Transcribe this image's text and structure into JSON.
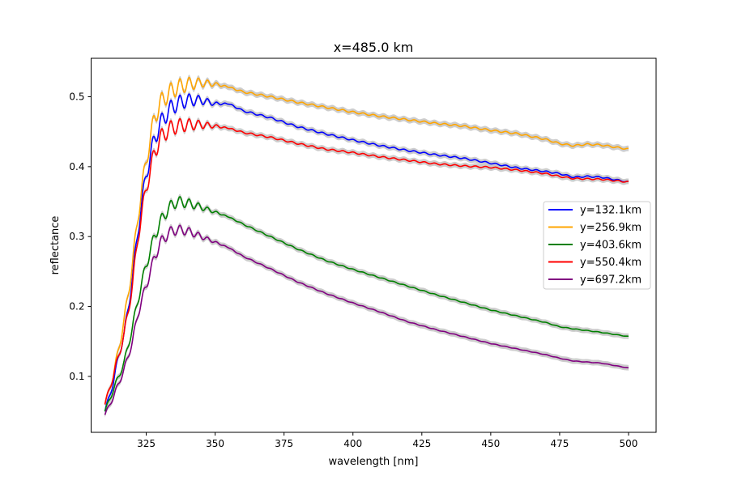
{
  "chart_data": {
    "type": "line",
    "title": "x=485.0 km",
    "xlabel": "wavelength [nm]",
    "ylabel": "reflectance",
    "xlim": [
      305,
      510
    ],
    "ylim": [
      0.02,
      0.555
    ],
    "x_ticks": [
      325,
      350,
      375,
      400,
      425,
      450,
      475,
      500
    ],
    "x_tick_labels": [
      "325",
      "350",
      "375",
      "400",
      "425",
      "450",
      "475",
      "500"
    ],
    "y_ticks": [
      0.1,
      0.2,
      0.3,
      0.4,
      0.5
    ],
    "y_tick_labels": [
      "0.1",
      "0.2",
      "0.3",
      "0.4",
      "0.5"
    ],
    "grid": false,
    "legend_position": "center-right",
    "uncertainty_band_color": "#c8c8c8",
    "series": [
      {
        "name": "y=132.1km",
        "color": "#0000ff",
        "points": [
          [
            310,
            0.05
          ],
          [
            313,
            0.09
          ],
          [
            315,
            0.13
          ],
          [
            317,
            0.16
          ],
          [
            320,
            0.24
          ],
          [
            322,
            0.31
          ],
          [
            325,
            0.39
          ],
          [
            328,
            0.44
          ],
          [
            330,
            0.46
          ],
          [
            333,
            0.48
          ],
          [
            336,
            0.49
          ],
          [
            340,
            0.495
          ],
          [
            345,
            0.495
          ],
          [
            350,
            0.49
          ],
          [
            355,
            0.49
          ],
          [
            360,
            0.48
          ],
          [
            370,
            0.47
          ],
          [
            380,
            0.457
          ],
          [
            390,
            0.447
          ],
          [
            400,
            0.438
          ],
          [
            410,
            0.43
          ],
          [
            420,
            0.423
          ],
          [
            430,
            0.417
          ],
          [
            440,
            0.412
          ],
          [
            450,
            0.405
          ],
          [
            460,
            0.398
          ],
          [
            470,
            0.393
          ],
          [
            475,
            0.39
          ],
          [
            480,
            0.385
          ],
          [
            485,
            0.386
          ],
          [
            490,
            0.385
          ],
          [
            500,
            0.378
          ]
        ]
      },
      {
        "name": "y=256.9km",
        "color": "#ffa500",
        "points": [
          [
            310,
            0.06
          ],
          [
            313,
            0.1
          ],
          [
            315,
            0.14
          ],
          [
            317,
            0.18
          ],
          [
            320,
            0.26
          ],
          [
            322,
            0.33
          ],
          [
            325,
            0.41
          ],
          [
            328,
            0.47
          ],
          [
            330,
            0.49
          ],
          [
            333,
            0.505
          ],
          [
            336,
            0.513
          ],
          [
            340,
            0.518
          ],
          [
            345,
            0.52
          ],
          [
            350,
            0.518
          ],
          [
            355,
            0.514
          ],
          [
            360,
            0.507
          ],
          [
            370,
            0.5
          ],
          [
            380,
            0.492
          ],
          [
            390,
            0.485
          ],
          [
            400,
            0.478
          ],
          [
            410,
            0.472
          ],
          [
            420,
            0.467
          ],
          [
            430,
            0.462
          ],
          [
            440,
            0.458
          ],
          [
            450,
            0.452
          ],
          [
            460,
            0.447
          ],
          [
            470,
            0.439
          ],
          [
            475,
            0.433
          ],
          [
            480,
            0.43
          ],
          [
            485,
            0.432
          ],
          [
            490,
            0.431
          ],
          [
            500,
            0.425
          ]
        ]
      },
      {
        "name": "y=403.6km",
        "color": "#008000",
        "points": [
          [
            310,
            0.05
          ],
          [
            313,
            0.08
          ],
          [
            315,
            0.1
          ],
          [
            317,
            0.12
          ],
          [
            320,
            0.17
          ],
          [
            322,
            0.21
          ],
          [
            325,
            0.26
          ],
          [
            328,
            0.3
          ],
          [
            330,
            0.32
          ],
          [
            333,
            0.34
          ],
          [
            336,
            0.35
          ],
          [
            340,
            0.348
          ],
          [
            345,
            0.342
          ],
          [
            350,
            0.335
          ],
          [
            355,
            0.328
          ],
          [
            360,
            0.318
          ],
          [
            370,
            0.3
          ],
          [
            380,
            0.282
          ],
          [
            390,
            0.266
          ],
          [
            400,
            0.253
          ],
          [
            410,
            0.241
          ],
          [
            420,
            0.229
          ],
          [
            430,
            0.217
          ],
          [
            440,
            0.206
          ],
          [
            450,
            0.195
          ],
          [
            460,
            0.186
          ],
          [
            470,
            0.177
          ],
          [
            475,
            0.171
          ],
          [
            480,
            0.168
          ],
          [
            490,
            0.163
          ],
          [
            500,
            0.157
          ]
        ]
      },
      {
        "name": "y=550.4km",
        "color": "#ff0000",
        "points": [
          [
            310,
            0.06
          ],
          [
            313,
            0.1
          ],
          [
            315,
            0.13
          ],
          [
            317,
            0.16
          ],
          [
            320,
            0.23
          ],
          [
            322,
            0.3
          ],
          [
            325,
            0.37
          ],
          [
            328,
            0.42
          ],
          [
            330,
            0.44
          ],
          [
            333,
            0.453
          ],
          [
            336,
            0.458
          ],
          [
            340,
            0.46
          ],
          [
            345,
            0.46
          ],
          [
            350,
            0.458
          ],
          [
            355,
            0.455
          ],
          [
            360,
            0.449
          ],
          [
            370,
            0.442
          ],
          [
            380,
            0.433
          ],
          [
            390,
            0.425
          ],
          [
            400,
            0.42
          ],
          [
            410,
            0.414
          ],
          [
            420,
            0.409
          ],
          [
            430,
            0.404
          ],
          [
            440,
            0.401
          ],
          [
            450,
            0.399
          ],
          [
            460,
            0.395
          ],
          [
            470,
            0.39
          ],
          [
            475,
            0.386
          ],
          [
            480,
            0.383
          ],
          [
            490,
            0.382
          ],
          [
            500,
            0.378
          ]
        ]
      },
      {
        "name": "y=697.2km",
        "color": "#800080",
        "points": [
          [
            310,
            0.045
          ],
          [
            313,
            0.07
          ],
          [
            315,
            0.09
          ],
          [
            317,
            0.11
          ],
          [
            320,
            0.15
          ],
          [
            322,
            0.19
          ],
          [
            325,
            0.23
          ],
          [
            328,
            0.27
          ],
          [
            330,
            0.29
          ],
          [
            333,
            0.305
          ],
          [
            336,
            0.31
          ],
          [
            340,
            0.308
          ],
          [
            345,
            0.3
          ],
          [
            350,
            0.292
          ],
          [
            355,
            0.284
          ],
          [
            360,
            0.272
          ],
          [
            370,
            0.254
          ],
          [
            380,
            0.235
          ],
          [
            390,
            0.219
          ],
          [
            400,
            0.205
          ],
          [
            410,
            0.192
          ],
          [
            420,
            0.178
          ],
          [
            430,
            0.167
          ],
          [
            440,
            0.157
          ],
          [
            450,
            0.147
          ],
          [
            460,
            0.139
          ],
          [
            470,
            0.131
          ],
          [
            475,
            0.126
          ],
          [
            480,
            0.122
          ],
          [
            490,
            0.119
          ],
          [
            500,
            0.112
          ]
        ]
      }
    ]
  }
}
